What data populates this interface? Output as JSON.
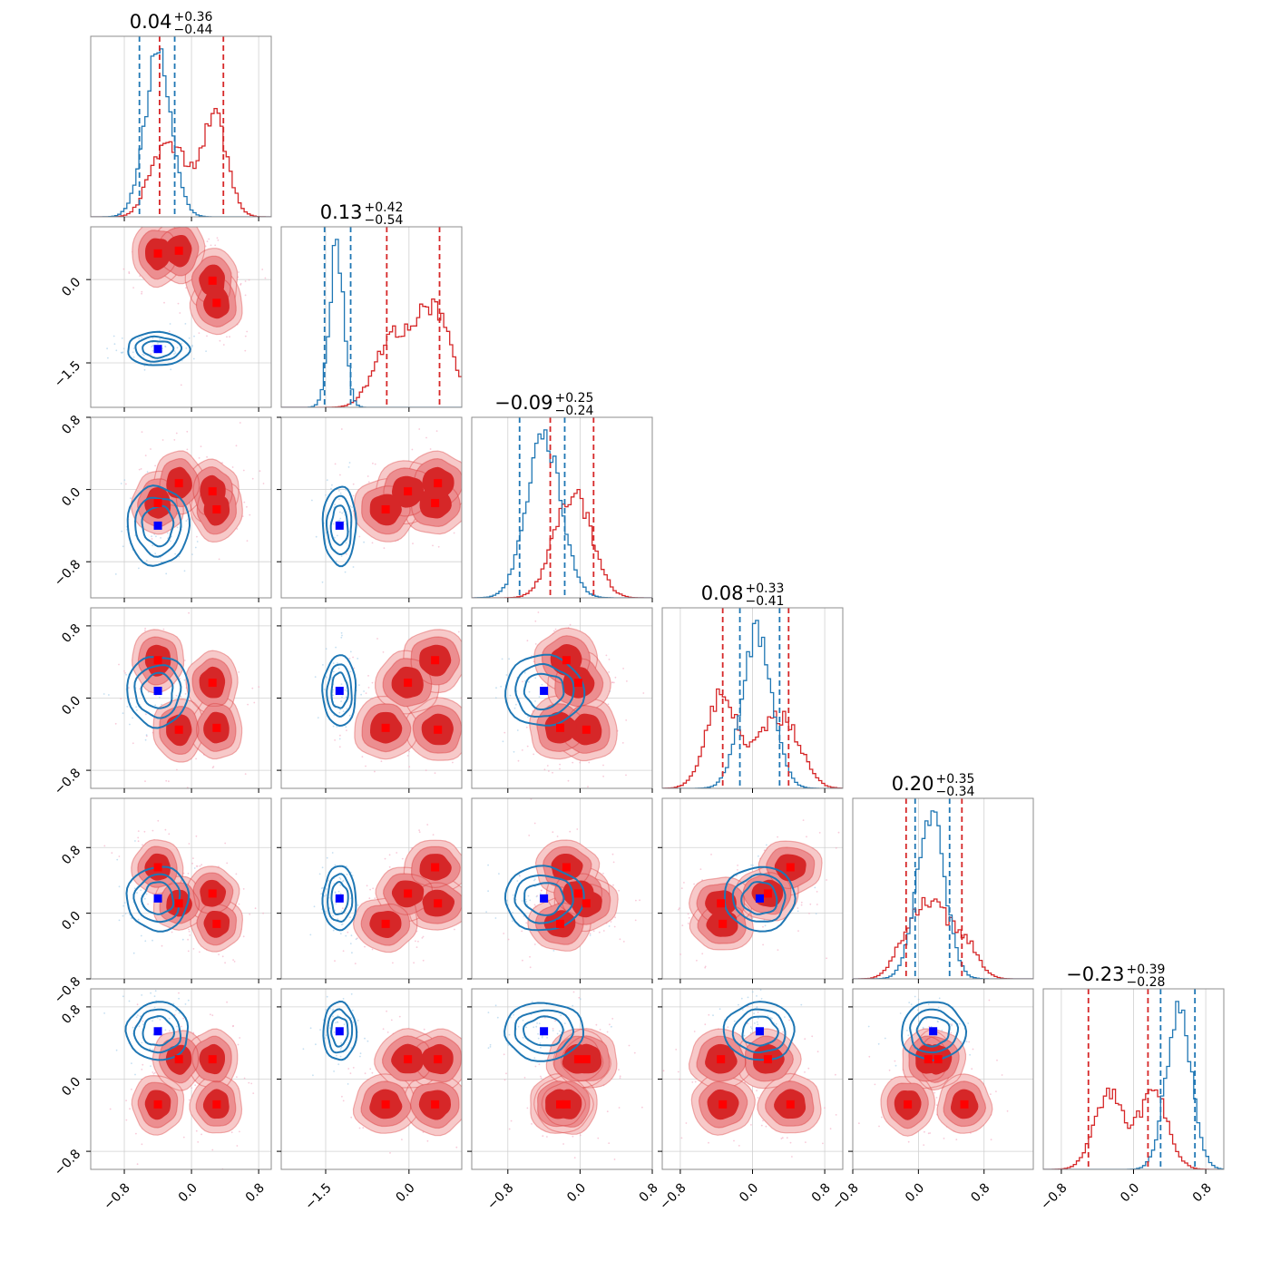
{
  "chart_data": {
    "type": "corner",
    "titles": [
      {
        "median": "0.04",
        "plus": "+0.36",
        "minus": "−0.44"
      },
      {
        "median": "0.13",
        "plus": "+0.42",
        "minus": "−0.54"
      },
      {
        "median": "−0.09",
        "plus": "+0.25",
        "minus": "−0.24"
      },
      {
        "median": "0.08",
        "plus": "+0.33",
        "minus": "−0.41"
      },
      {
        "median": "0.20",
        "plus": "+0.35",
        "minus": "−0.34"
      },
      {
        "median": "−0.23",
        "plus": "+0.39",
        "minus": "−0.28"
      }
    ],
    "ranges": [
      [
        -1.2,
        0.95
      ],
      [
        -2.3,
        0.95
      ],
      [
        -1.2,
        0.8
      ],
      [
        -1.0,
        1.0
      ],
      [
        -0.8,
        1.4
      ],
      [
        -1.0,
        1.0
      ]
    ],
    "x_ticks": [
      [
        {
          "v": -0.8,
          "label": "−0.8"
        },
        {
          "v": 0.0,
          "label": "0.0"
        },
        {
          "v": 0.8,
          "label": "0.8"
        }
      ],
      [
        {
          "v": -1.5,
          "label": "−1.5"
        },
        {
          "v": 0.0,
          "label": "0.0"
        }
      ],
      [
        {
          "v": -0.8,
          "label": "−0.8"
        },
        {
          "v": 0.0,
          "label": "0.0"
        },
        {
          "v": 0.8,
          "label": "0.8"
        }
      ],
      [
        {
          "v": -0.8,
          "label": "−0.8"
        },
        {
          "v": 0.0,
          "label": "0.0"
        },
        {
          "v": 0.8,
          "label": "0.8"
        }
      ],
      [
        {
          "v": -0.8,
          "label": "−0.8"
        },
        {
          "v": 0.0,
          "label": "0.0"
        },
        {
          "v": 0.8,
          "label": "0.8"
        }
      ],
      [
        {
          "v": -0.8,
          "label": "−0.8"
        },
        {
          "v": 0.0,
          "label": "0.0"
        },
        {
          "v": 0.8,
          "label": "0.8"
        }
      ]
    ],
    "y_ticks": [
      [],
      [
        {
          "v": 0.0,
          "label": "0.0"
        },
        {
          "v": -1.5,
          "label": "−1.5"
        }
      ],
      [
        {
          "v": 0.8,
          "label": "0.8"
        },
        {
          "v": 0.0,
          "label": "0.0"
        },
        {
          "v": -0.8,
          "label": "−0.8"
        }
      ],
      [
        {
          "v": 0.8,
          "label": "0.8"
        },
        {
          "v": 0.0,
          "label": "0.0"
        },
        {
          "v": -0.8,
          "label": "−0.8"
        }
      ],
      [
        {
          "v": 0.8,
          "label": "0.8"
        },
        {
          "v": 0.0,
          "label": "0.0"
        },
        {
          "v": -0.8,
          "label": "−0.8"
        }
      ],
      [
        {
          "v": 0.8,
          "label": "0.8"
        },
        {
          "v": 0.0,
          "label": "0.0"
        },
        {
          "v": -0.8,
          "label": "−0.8"
        }
      ]
    ],
    "series": [
      {
        "color": "#1f77b4",
        "modes": [
          [
            -0.4,
            -1.25,
            -0.4,
            0.08,
            0.18,
            0.53
          ]
        ],
        "hist": [
          {
            "center": -0.4,
            "sigma": 0.16
          },
          {
            "center": -1.3,
            "sigma": 0.13
          },
          {
            "center": -0.4,
            "sigma": 0.19
          },
          {
            "center": 0.05,
            "sigma": 0.17
          },
          {
            "center": 0.15,
            "sigma": 0.17
          },
          {
            "center": 0.5,
            "sigma": 0.14
          }
        ],
        "quantiles": [
          [
            -0.62,
            -0.2
          ],
          [
            -1.52,
            -1.05
          ],
          [
            -0.67,
            -0.17
          ],
          [
            -0.14,
            0.3
          ],
          [
            -0.04,
            0.38
          ],
          [
            0.3,
            0.68
          ]
        ]
      },
      {
        "color": "#d62728",
        "modes": [
          [
            -0.4,
            0.47,
            -0.15,
            0.42,
            0.56,
            -0.28
          ],
          [
            -0.15,
            0.52,
            0.07,
            -0.35,
            0.12,
            0.22
          ],
          [
            0.25,
            -0.02,
            -0.02,
            0.17,
            0.24,
            0.22
          ],
          [
            0.3,
            -0.42,
            -0.22,
            -0.33,
            -0.13,
            -0.28
          ]
        ],
        "hist_bimodal": true,
        "quantiles": [
          [
            -0.38,
            0.38
          ],
          [
            -0.4,
            0.55
          ],
          [
            -0.33,
            0.15
          ],
          [
            -0.33,
            0.4
          ],
          [
            -0.15,
            0.53
          ],
          [
            -0.5,
            0.16
          ]
        ]
      }
    ]
  }
}
